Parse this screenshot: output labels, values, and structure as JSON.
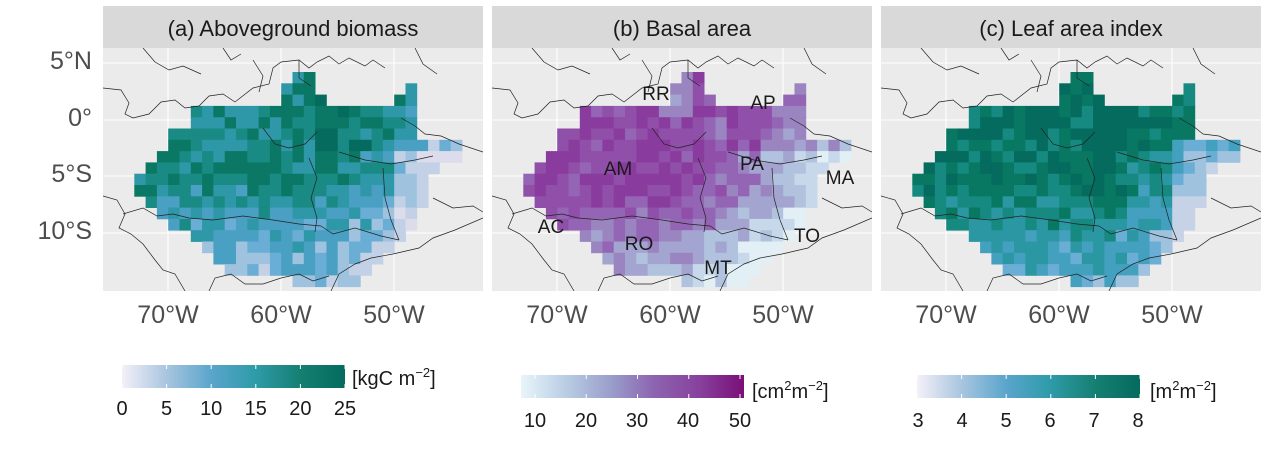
{
  "lat_labels": [
    "5°N",
    "0°",
    "5°S",
    "10°S"
  ],
  "lon_labels": [
    "70°W",
    "60°W",
    "50°W"
  ],
  "panels": [
    {
      "title": "(a) Aboveground biomass",
      "colorbar": {
        "unit": "[kgC m",
        "unit_sup": "−2",
        "unit_end": "]",
        "ticks": [
          "0",
          "5",
          "10",
          "15",
          "20",
          "25"
        ],
        "colors": [
          "#f4f0f8",
          "#a8c5df",
          "#5aa5cc",
          "#2e9ba8",
          "#157f72",
          "#046b5e"
        ]
      },
      "palette": [
        "#dcdcec",
        "#c3d1e6",
        "#9fc2df",
        "#6aaed5",
        "#4aa0c2",
        "#2e97a8",
        "#198b84",
        "#0a7864",
        "#046b5e"
      ],
      "labels": []
    },
    {
      "title": "(b) Basal area",
      "colorbar": {
        "unit": "[cm",
        "unit_sup": "2",
        "unit_mid": "m",
        "unit_sup2": "−2",
        "unit_end": "]",
        "ticks": [
          "10",
          "20",
          "30",
          "40",
          "50"
        ],
        "colors": [
          "#e8f5fa",
          "#b9cde4",
          "#9a9fcb",
          "#8c63b0",
          "#88419d",
          "#7a0f78"
        ]
      },
      "palette": [
        "#e2f0f6",
        "#c6d8ea",
        "#b1c2de",
        "#a3a4cf",
        "#9a85c0",
        "#9465b4",
        "#904fa8",
        "#8a3c9e",
        "#7d1f86"
      ],
      "labels": [
        "RR",
        "AP",
        "AM",
        "PA",
        "MA",
        "AC",
        "RO",
        "TO",
        "MT"
      ]
    },
    {
      "title": "(c) Leaf area index",
      "colorbar": {
        "unit": "[m",
        "unit_sup": "2",
        "unit_mid": "m",
        "unit_sup2": "−2",
        "unit_end": "]",
        "ticks": [
          "3",
          "4",
          "5",
          "6",
          "7",
          "8"
        ],
        "colors": [
          "#f4f0f8",
          "#a8c5df",
          "#5aa5cc",
          "#2e9ba8",
          "#157f72",
          "#046b5e"
        ]
      },
      "palette": [
        "#e3e0ee",
        "#c6d2e6",
        "#9fc2df",
        "#6aaed5",
        "#44a0bf",
        "#2a97a3",
        "#168a80",
        "#087863",
        "#046b5e"
      ],
      "labels": []
    }
  ]
}
